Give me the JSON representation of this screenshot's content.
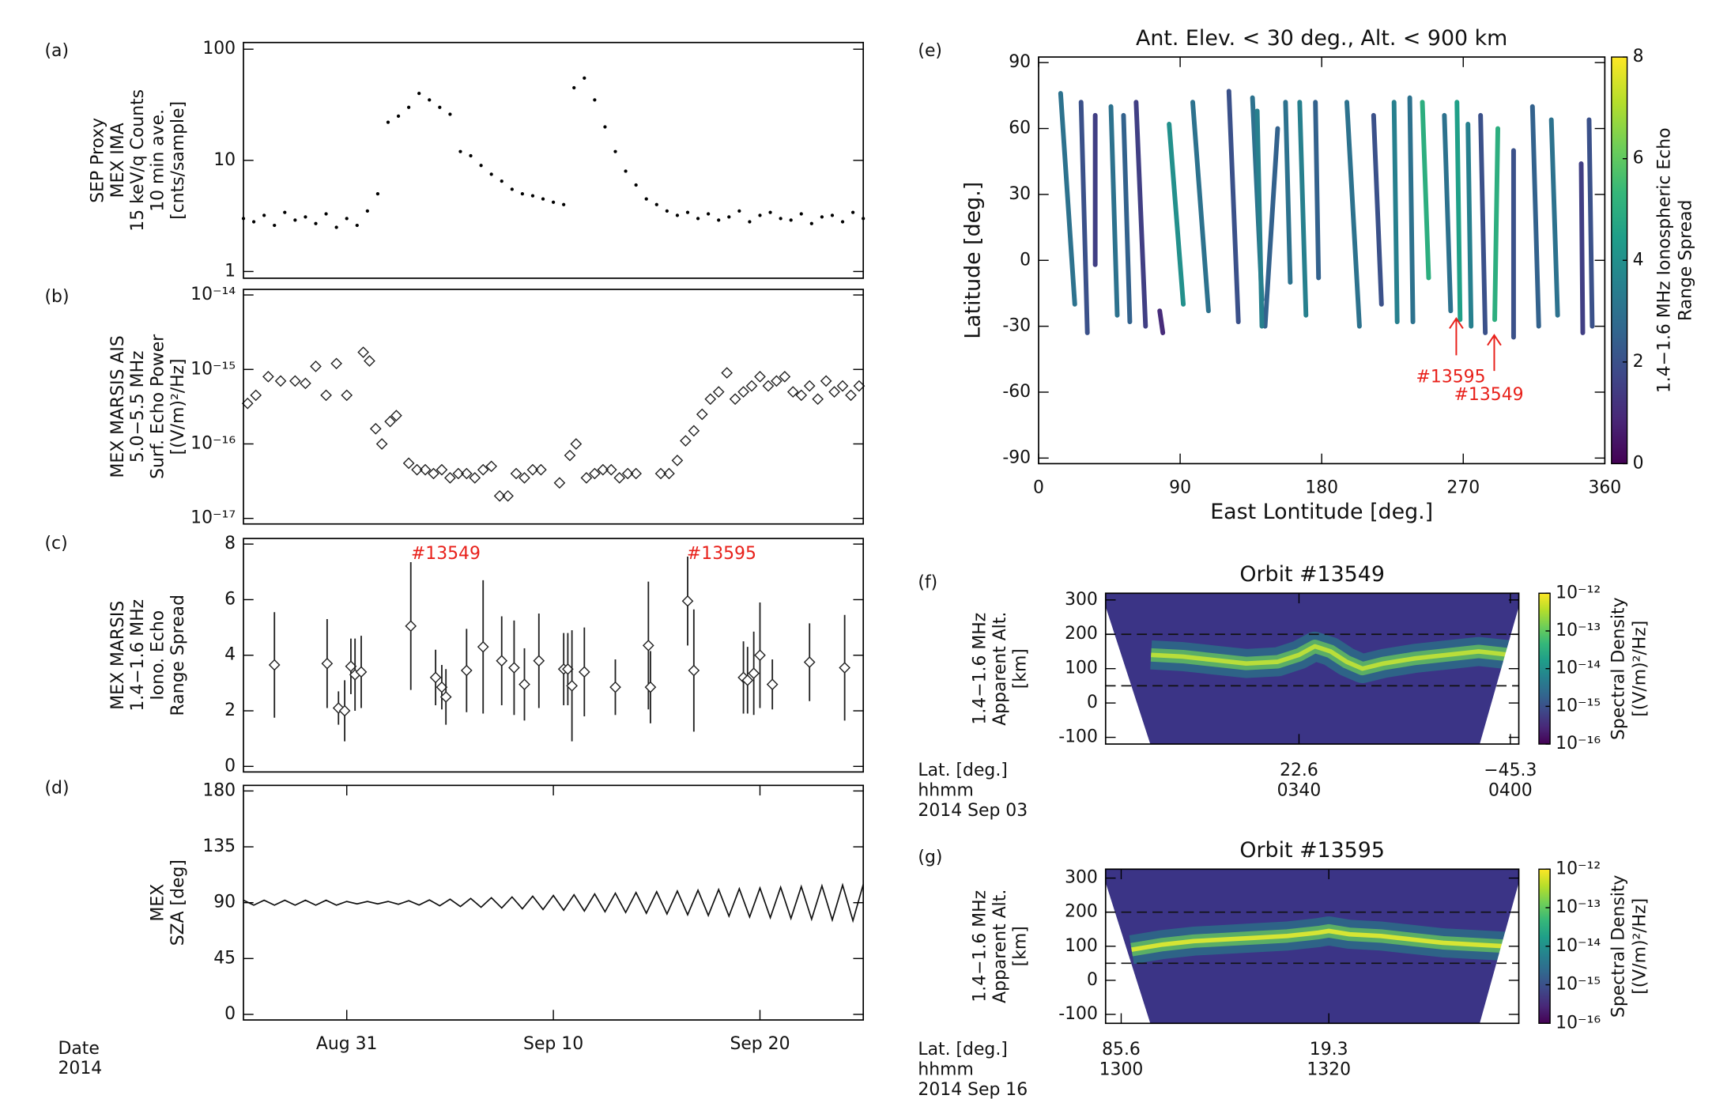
{
  "chart_data": [
    {
      "type": "scatter",
      "panel": "(a)",
      "ylabel": [
        "SEP Proxy",
        "MEX IMA",
        "15 keV/q Counts",
        "10 min ave.",
        "[cnts/sample]"
      ],
      "x": [
        238,
        238.5,
        239,
        239.5,
        240,
        240.5,
        241,
        241.5,
        242,
        242.5,
        243,
        243.5,
        244,
        244.5,
        245,
        245.5,
        246,
        246.5,
        247,
        247.5,
        248,
        248.5,
        249,
        249.5,
        250,
        250.5,
        251,
        251.5,
        252,
        252.5,
        253,
        253.5,
        254,
        254.5,
        255,
        255.5,
        256,
        256.5,
        257,
        257.5,
        258,
        258.5,
        259,
        259.5,
        260,
        260.5,
        261,
        261.5,
        262,
        262.5,
        263,
        263.5,
        264,
        264.5,
        265,
        265.5,
        266,
        266.5,
        267,
        267.5,
        268
      ],
      "values": [
        3,
        2.8,
        3.2,
        2.6,
        3.4,
        2.9,
        3.1,
        2.7,
        3.3,
        2.5,
        3,
        2.6,
        3.5,
        5,
        22,
        25,
        30,
        40,
        35,
        30,
        26,
        12,
        11,
        9,
        7.5,
        6.5,
        5.5,
        5,
        4.8,
        4.5,
        4.2,
        4,
        45,
        55,
        35,
        20,
        12,
        8,
        6,
        4.5,
        4,
        3.5,
        3.2,
        3.4,
        3,
        3.3,
        2.9,
        3.1,
        3.5,
        2.8,
        3.2,
        3.4,
        3,
        2.9,
        3.3,
        2.7,
        3.1,
        3.2,
        2.8,
        3.4,
        3
      ],
      "xlim": [
        238,
        268
      ],
      "ylim": [
        1,
        100
      ],
      "ylog": true,
      "yticks": [
        1,
        10,
        100
      ],
      "color": "#000000",
      "marker": "dot"
    },
    {
      "type": "scatter",
      "panel": "(b)",
      "ylabel": [
        "MEX MARSIS AIS",
        "5.0−5.5 MHz",
        "Surf. Echo Power",
        "[(V/m)²/Hz]"
      ],
      "x": [
        238.2,
        238.6,
        239.2,
        239.8,
        240.5,
        241,
        241.5,
        242,
        242.5,
        243,
        243.8,
        244.1,
        244.4,
        244.7,
        245.1,
        245.4,
        246,
        246.4,
        246.8,
        247.2,
        247.6,
        248,
        248.4,
        248.8,
        249.2,
        249.6,
        250,
        250.4,
        250.8,
        251.2,
        251.6,
        252,
        252.4,
        253.3,
        253.8,
        254.1,
        254.6,
        255,
        255.4,
        255.8,
        256.2,
        256.6,
        257,
        258.2,
        258.6,
        259,
        259.4,
        259.8,
        260.2,
        260.6,
        261,
        261.4,
        261.8,
        262.2,
        262.6,
        263,
        263.4,
        263.8,
        264.2,
        264.6,
        265,
        265.4,
        265.8,
        266.2,
        266.6,
        267,
        267.4,
        267.8
      ],
      "values": [
        3.5e-16,
        4.5e-16,
        8e-16,
        7e-16,
        7e-16,
        6.5e-16,
        1.1e-15,
        4.5e-16,
        1.2e-15,
        4.5e-16,
        1.7e-15,
        1.3e-15,
        1.6e-16,
        1e-16,
        2e-16,
        2.4e-16,
        5.5e-17,
        4.5e-17,
        4.5e-17,
        4e-17,
        4.5e-17,
        3.5e-17,
        4e-17,
        4e-17,
        3.5e-17,
        4.5e-17,
        5e-17,
        2e-17,
        2e-17,
        4e-17,
        3.5e-17,
        4.5e-17,
        4.5e-17,
        3e-17,
        7e-17,
        1e-16,
        3.5e-17,
        4e-17,
        4.5e-17,
        4.5e-17,
        3.5e-17,
        4e-17,
        4e-17,
        4e-17,
        4e-17,
        6e-17,
        1.1e-16,
        1.5e-16,
        2.5e-16,
        4e-16,
        5e-16,
        9e-16,
        4e-16,
        5e-16,
        6e-16,
        8e-16,
        6e-16,
        7e-16,
        8e-16,
        5e-16,
        4.5e-16,
        6e-16,
        4e-16,
        7e-16,
        5e-16,
        6e-16,
        4.5e-16,
        6e-16
      ],
      "xlim": [
        238,
        268
      ],
      "ylim": [
        1e-17,
        1e-14
      ],
      "ylog": true,
      "yticks": [
        {
          "value": 1e-17,
          "label": "10⁻¹⁷"
        },
        {
          "value": 1e-16,
          "label": "10⁻¹⁶"
        },
        {
          "value": 1e-15,
          "label": "10⁻¹⁵"
        },
        {
          "value": 1e-14,
          "label": "10⁻¹⁴"
        }
      ],
      "color": "#222222",
      "marker": "diamond"
    },
    {
      "type": "errorbar",
      "panel": "(c)",
      "ylabel": [
        "MEX MARSIS",
        "1.4−1.6 MHz",
        "Iono. Echo",
        "Range Spread"
      ],
      "x": [
        239.5,
        242.05,
        242.6,
        242.9,
        243.2,
        243.4,
        243.7,
        246.1,
        247.3,
        247.6,
        247.8,
        248.8,
        249.6,
        250.5,
        251.1,
        251.6,
        252.3,
        253.5,
        253.7,
        253.9,
        254.5,
        256,
        257.6,
        257.7,
        259.5,
        259.8,
        262.2,
        262.4,
        262.7,
        263,
        263.6,
        265.4,
        267.1
      ],
      "values": [
        3.65,
        3.7,
        2.1,
        2,
        3.6,
        3.3,
        3.4,
        5.05,
        3.2,
        2.85,
        2.5,
        3.45,
        4.3,
        3.8,
        3.55,
        2.95,
        3.8,
        3.5,
        3.5,
        2.9,
        3.4,
        2.85,
        4.35,
        2.85,
        5.95,
        3.45,
        3.2,
        3.1,
        3.35,
        4,
        2.95,
        3.75,
        3.55
      ],
      "errors": [
        1.9,
        1.6,
        0.6,
        1.1,
        1,
        1.3,
        1.3,
        2.3,
        1,
        0.8,
        1,
        1.5,
        2.4,
        1.6,
        1.7,
        1.3,
        1.7,
        1.3,
        1.3,
        2,
        1.6,
        1,
        2.3,
        1.3,
        1.6,
        2.2,
        1.3,
        1.2,
        1.5,
        1.9,
        0.9,
        1.4,
        1.9
      ],
      "xlim": [
        238,
        268
      ],
      "ylim": [
        0,
        8
      ],
      "yticks": [
        0,
        2,
        4,
        6,
        8
      ],
      "color": "#222222",
      "annotations": [
        {
          "text": "#13549"
        },
        {
          "text": "#13595"
        }
      ],
      "annotation_color": "#e8201a"
    },
    {
      "type": "line",
      "panel": "(d)",
      "ylabel": [
        "MEX",
        "SZA [deg]"
      ],
      "x": [
        238,
        238.5,
        239,
        239.5,
        240,
        240.5,
        241,
        241.5,
        242,
        242.5,
        243,
        243.5,
        244,
        244.5,
        245,
        245.5,
        246,
        246.5,
        247,
        247.5,
        248,
        248.5,
        249,
        249.5,
        250,
        250.5,
        251,
        251.5,
        252,
        252.5,
        253,
        253.5,
        254,
        254.5,
        255,
        255.5,
        256,
        256.5,
        257,
        257.5,
        258,
        258.5,
        259,
        259.5,
        260,
        260.5,
        261,
        261.5,
        262,
        262.5,
        263,
        263.5,
        264,
        264.5,
        265,
        265.5,
        266,
        266.5,
        267,
        267.5,
        268
      ],
      "values": [
        92,
        88,
        92,
        88,
        92,
        88,
        92,
        88,
        92,
        88,
        91,
        89,
        91,
        89,
        91,
        88.7,
        91.6,
        88.1,
        92.2,
        87.5,
        92.8,
        86.9,
        93.4,
        86.3,
        94,
        85.7,
        94.6,
        85.1,
        95.2,
        84.5,
        95.8,
        83.9,
        96.4,
        83.3,
        97,
        82.7,
        97.6,
        82.1,
        98.2,
        81.5,
        98.8,
        80.9,
        99.4,
        80.3,
        100,
        79.7,
        100.6,
        79.1,
        101.2,
        78.5,
        101.8,
        77.9,
        102.4,
        77.3,
        103,
        76.7,
        103.6,
        76.1,
        104.2,
        75.5,
        104.8
      ],
      "xlim": [
        238,
        268
      ],
      "ylim": [
        0,
        180
      ],
      "yticks": [
        0,
        45,
        90,
        135,
        180
      ],
      "xticks": [
        {
          "value": 243,
          "label": "Aug 31"
        },
        {
          "value": 253,
          "label": "Sep 10"
        },
        {
          "value": 263,
          "label": "Sep 20"
        }
      ],
      "date_label": [
        "Date",
        "2014"
      ],
      "color": "#111111"
    },
    {
      "type": "tracks",
      "panel": "(e)",
      "title": "Ant. Elev. < 30 deg., Alt. < 900 km",
      "xlabel": "East Lontitude [deg.]",
      "ylabel": "Latitude [deg.]",
      "lon_top": [
        14,
        27,
        36,
        46,
        54,
        62,
        77,
        83,
        98,
        121,
        136,
        152,
        139,
        157,
        166,
        176,
        196,
        213,
        226,
        236,
        244,
        258,
        266,
        273,
        281,
        292,
        302,
        314,
        326,
        345,
        350
      ],
      "lon_bottom": [
        23,
        31,
        36,
        50,
        58,
        68,
        79,
        92,
        108,
        127,
        142,
        144,
        142,
        160,
        170,
        178,
        204,
        218,
        228,
        238,
        248,
        262,
        268,
        275,
        284,
        290,
        302,
        318,
        330,
        346,
        352
      ],
      "lat_top": [
        76,
        72,
        66,
        70,
        66,
        72,
        -23,
        62,
        72,
        77,
        74,
        60,
        68,
        72,
        72,
        72,
        72,
        66,
        72,
        74,
        72,
        66,
        72,
        62,
        66,
        60,
        50,
        70,
        64,
        44,
        64
      ],
      "lat_bottom": [
        -20,
        -33,
        -2,
        -25,
        -28,
        -30,
        -33,
        -20,
        -23,
        -28,
        -18,
        -30,
        -30,
        -10,
        -25,
        -8,
        -30,
        -20,
        -28,
        -28,
        -8,
        -23,
        -27,
        -30,
        -33,
        -27,
        -35,
        -30,
        -25,
        -33,
        -30
      ],
      "range_spread": [
        3,
        2,
        1.5,
        3,
        2.5,
        1.5,
        1,
        4,
        3,
        2,
        3,
        2.5,
        3.5,
        3,
        3.5,
        2.5,
        3,
        2,
        3.5,
        3,
        5,
        3,
        4.5,
        3.5,
        2,
        5,
        2,
        2.5,
        3,
        1.5,
        2
      ],
      "xlim": [
        0,
        360
      ],
      "ylim": [
        -90,
        90
      ],
      "xticks": [
        0,
        90,
        180,
        270,
        360
      ],
      "yticks": [
        -90,
        -60,
        -30,
        0,
        30,
        60,
        90
      ],
      "clim": [
        0,
        8
      ],
      "cticks": [
        0,
        2,
        4,
        6,
        8
      ],
      "colorbar_label": [
        "1.4−1.6 MHz Ionospheric Echo",
        "Range Spread"
      ],
      "colormap": [
        "#440154",
        "#482878",
        "#3e4989",
        "#31688e",
        "#26828e",
        "#1f9e89",
        "#35b779",
        "#6ece58",
        "#b5de2b",
        "#fde725"
      ],
      "annotations": [
        {
          "text": "#13595"
        },
        {
          "text": "#13549"
        }
      ],
      "annotation_color": "#e8201a"
    },
    {
      "type": "spectrogram",
      "panel": "(f)",
      "title": "Orbit #13549",
      "ylabel": [
        "1.4−1.6 MHz",
        "Apparent Alt.",
        "[km]"
      ],
      "x": [
        206,
        209,
        212,
        215,
        218,
        220,
        221.5,
        223,
        224.5,
        226,
        228,
        231,
        234,
        237,
        240
      ],
      "values": [
        140,
        135,
        125,
        115,
        120,
        140,
        165,
        150,
        120,
        100,
        115,
        130,
        140,
        150,
        140
      ],
      "xlim": [
        201.7,
        240.8
      ],
      "ylim": [
        -100,
        300
      ],
      "yticks": [
        -100,
        0,
        100,
        200,
        300
      ],
      "xticks": [
        {
          "value": 220,
          "label": "0340"
        },
        {
          "value": 240,
          "label": "0400"
        }
      ],
      "lat_ticks": [
        {
          "value": 220,
          "label": "22.6"
        },
        {
          "value": 240,
          "label": "−45.3"
        }
      ],
      "row_labels": [
        "Lat. [deg.]",
        "hhmm",
        "2014 Sep 03"
      ],
      "hlines": [
        200,
        50
      ],
      "clim": [
        1e-16,
        1e-12
      ],
      "cticks": [
        {
          "value": 1e-16,
          "label": "10⁻¹⁶"
        },
        {
          "value": 1e-15,
          "label": "10⁻¹⁵"
        },
        {
          "value": 1e-14,
          "label": "10⁻¹⁴"
        },
        {
          "value": 1e-13,
          "label": "10⁻¹³"
        },
        {
          "value": 1e-12,
          "label": "10⁻¹²"
        }
      ],
      "colorbar_label": [
        "Spectral Density",
        "[(V/m)²/Hz]"
      ],
      "colormap": [
        "#440154",
        "#482878",
        "#3e4989",
        "#31688e",
        "#26828e",
        "#1f9e89",
        "#35b779",
        "#6ece58",
        "#b5de2b",
        "#fde725"
      ],
      "background": "#3b3486",
      "trace_color": "#b9de3a"
    },
    {
      "type": "spectrogram",
      "panel": "(g)",
      "title": "Orbit #13595",
      "ylabel": [
        "1.4−1.6 MHz",
        "Apparent Alt.",
        "[km]"
      ],
      "x": [
        781,
        784,
        787,
        790,
        793,
        796,
        799,
        800,
        802,
        805,
        808,
        811,
        814,
        817
      ],
      "values": [
        90,
        105,
        115,
        120,
        125,
        130,
        140,
        145,
        135,
        130,
        120,
        110,
        105,
        100
      ],
      "xlim": [
        778.5,
        818.3
      ],
      "ylim": [
        -100,
        300
      ],
      "yticks": [
        -100,
        0,
        100,
        200,
        300
      ],
      "xticks": [
        {
          "value": 780,
          "label": "1300"
        },
        {
          "value": 800,
          "label": "1320"
        }
      ],
      "lat_ticks": [
        {
          "value": 780,
          "label": "85.6"
        },
        {
          "value": 800,
          "label": "19.3"
        }
      ],
      "row_labels": [
        "Lat. [deg.]",
        "hhmm",
        "2014 Sep 16"
      ],
      "hlines": [
        200,
        50
      ],
      "clim": [
        1e-16,
        1e-12
      ],
      "cticks": [
        {
          "value": 1e-16,
          "label": "10⁻¹⁶"
        },
        {
          "value": 1e-15,
          "label": "10⁻¹⁵"
        },
        {
          "value": 1e-14,
          "label": "10⁻¹⁴"
        },
        {
          "value": 1e-13,
          "label": "10⁻¹³"
        },
        {
          "value": 1e-12,
          "label": "10⁻¹²"
        }
      ],
      "colorbar_label": [
        "Spectral Density",
        "[(V/m)²/Hz]"
      ],
      "colormap": [
        "#440154",
        "#482878",
        "#3e4989",
        "#31688e",
        "#26828e",
        "#1f9e89",
        "#35b779",
        "#6ece58",
        "#b5de2b",
        "#fde725"
      ],
      "background": "#3b3486",
      "trace_color": "#d6e534"
    }
  ]
}
